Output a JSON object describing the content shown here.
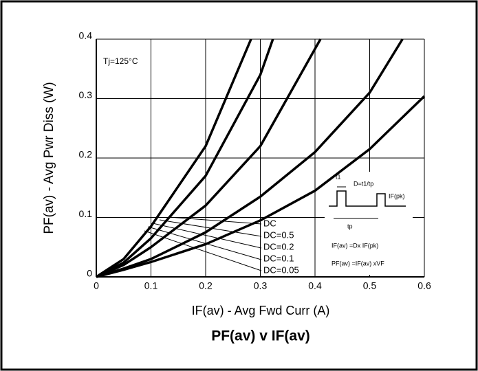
{
  "chart_data": {
    "type": "line",
    "title": "PF(av) v IF(av)",
    "x_label": "IF(av) - Avg Fwd Curr (A)",
    "y_label": "PF(av) - Avg Pwr Diss (W)",
    "xlim": [
      0,
      0.6
    ],
    "xticks": [
      0,
      0.1,
      0.2,
      0.3,
      0.4,
      0.5,
      0.6
    ],
    "ylim": [
      0,
      0.4
    ],
    "yticks": [
      0,
      0.1,
      0.2,
      0.3,
      0.4
    ],
    "grid": true,
    "annotations": [
      "Tj=125°C",
      "t1",
      "D=t1/tp",
      "IF(pk)",
      "tp",
      "IF(av) =Dx IF(pk)",
      "PF(av) =IF(av) xVF"
    ],
    "series": [
      {
        "name": "DC",
        "color": "#000000",
        "x": [
          0,
          0.05,
          0.1,
          0.2,
          0.3,
          0.4,
          0.5,
          0.6
        ],
        "values": [
          0,
          0.012,
          0.025,
          0.055,
          0.095,
          0.145,
          0.215,
          0.304
        ]
      },
      {
        "name": "DC=0.5",
        "color": "#000000",
        "x": [
          0,
          0.05,
          0.1,
          0.2,
          0.3,
          0.4,
          0.5,
          0.56
        ],
        "values": [
          0,
          0.014,
          0.03,
          0.075,
          0.135,
          0.21,
          0.31,
          0.4
        ]
      },
      {
        "name": "DC=0.2",
        "color": "#000000",
        "x": [
          0,
          0.05,
          0.1,
          0.2,
          0.3,
          0.41
        ],
        "values": [
          0,
          0.02,
          0.05,
          0.12,
          0.22,
          0.4
        ]
      },
      {
        "name": "DC=0.1",
        "color": "#000000",
        "x": [
          0,
          0.05,
          0.1,
          0.2,
          0.3,
          0.323
        ],
        "values": [
          0,
          0.024,
          0.065,
          0.17,
          0.34,
          0.4
        ]
      },
      {
        "name": "DC=0.05",
        "color": "#000000",
        "x": [
          0,
          0.05,
          0.1,
          0.2,
          0.283
        ],
        "values": [
          0,
          0.03,
          0.085,
          0.22,
          0.4
        ]
      }
    ]
  }
}
